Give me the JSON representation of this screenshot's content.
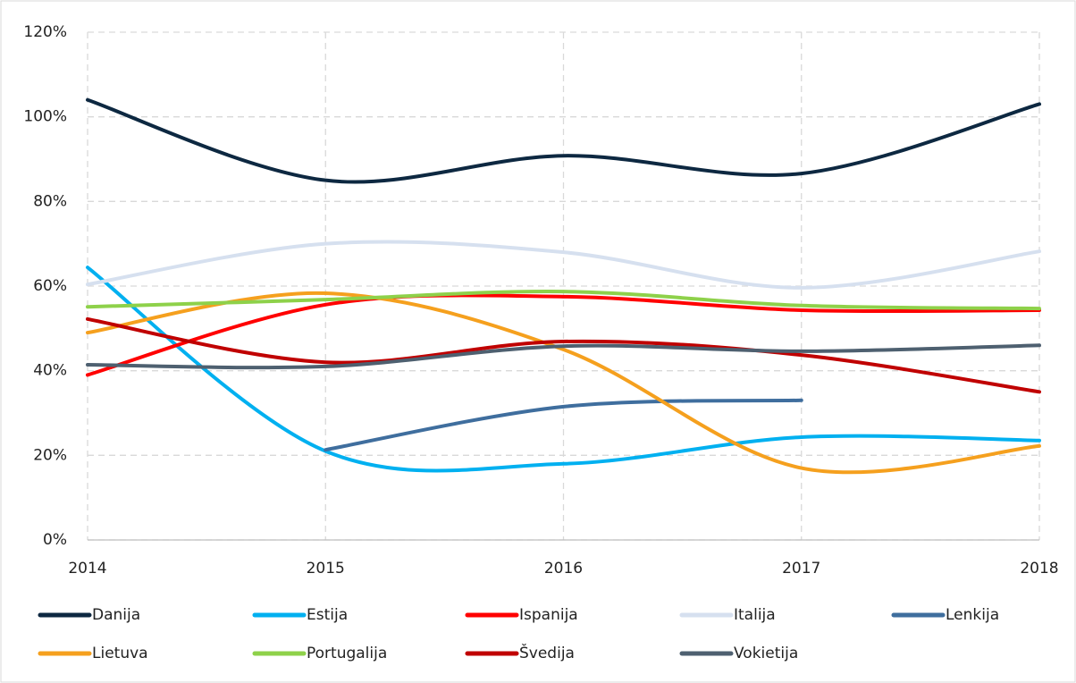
{
  "chart_data": {
    "type": "line",
    "x": [
      2014,
      2015,
      2016,
      2017,
      2018
    ],
    "xlim": [
      2014,
      2018
    ],
    "xticks": [
      2014,
      2015,
      2016,
      2017,
      2018
    ],
    "ylim": [
      0,
      120
    ],
    "yticks": [
      {
        "value": 0,
        "label": "0%"
      },
      {
        "value": 20,
        "label": "20%"
      },
      {
        "value": 40,
        "label": "40%"
      },
      {
        "value": 60,
        "label": "60%"
      },
      {
        "value": 80,
        "label": "80%"
      },
      {
        "value": 100,
        "label": "100%"
      },
      {
        "value": 120,
        "label": "120%"
      }
    ],
    "grid": true,
    "smooth": true,
    "legend": "bottom",
    "series": [
      {
        "name": "Danija",
        "color": "#0d2841",
        "values": [
          104,
          85,
          90.8,
          86.6,
          103
        ]
      },
      {
        "name": "Estija",
        "color": "#00b0f0",
        "values": [
          64.4,
          21,
          18,
          24.3,
          23.5
        ]
      },
      {
        "name": "Ispanija",
        "color": "#ff0000",
        "values": [
          39,
          55.6,
          57.5,
          54.3,
          54.3
        ]
      },
      {
        "name": "Italija",
        "color": "#d6e0ef",
        "values": [
          60.4,
          70,
          68,
          59.6,
          68.2
        ]
      },
      {
        "name": "Lenkija",
        "color": "#3f6e9e",
        "values": [
          null,
          21.3,
          31.5,
          33,
          null
        ]
      },
      {
        "name": "Lietuva",
        "color": "#f5a01e",
        "values": [
          49,
          58.3,
          45,
          17,
          22.2
        ]
      },
      {
        "name": "Portugalija",
        "color": "#8ed14a",
        "values": [
          55.1,
          56.8,
          58.7,
          55.4,
          54.7
        ]
      },
      {
        "name": "Švedija",
        "color": "#c00000",
        "values": [
          52.2,
          42,
          46.9,
          43.7,
          35
        ]
      },
      {
        "name": "Vokietija",
        "color": "#4e6070",
        "values": [
          41.4,
          41,
          45.8,
          44.6,
          46
        ]
      }
    ]
  }
}
